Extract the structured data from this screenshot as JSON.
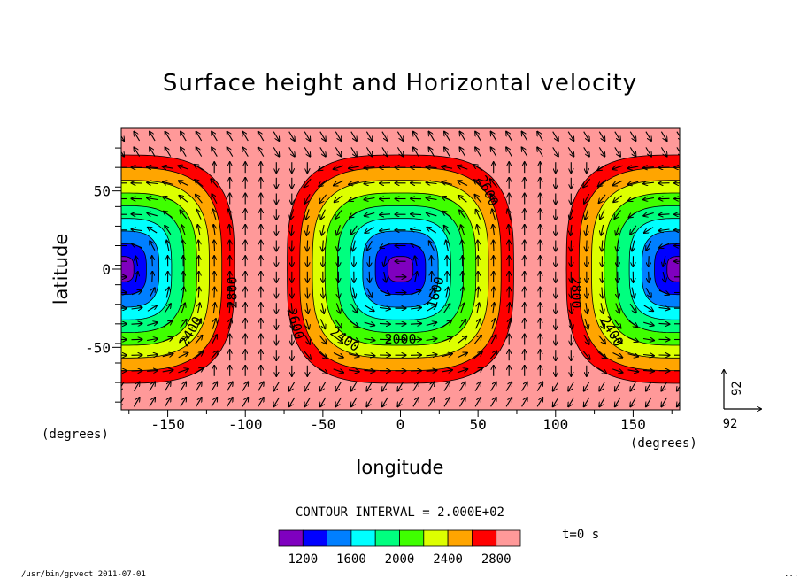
{
  "chart_data": {
    "type": "heatmap",
    "title": "Surface height and Horizontal velocity",
    "xlabel": "longitude",
    "ylabel": "latitude",
    "x_unit": "(degrees)",
    "y_unit": "(degrees)",
    "xlim": [
      -180,
      180
    ],
    "ylim": [
      -90,
      90
    ],
    "x_ticks": [
      -150,
      -100,
      -50,
      0,
      50,
      100,
      150
    ],
    "y_ticks": [
      50,
      0,
      -50
    ],
    "contour_interval_text": "CONTOUR INTERVAL = 2.000E+02",
    "time_text": "t=0 s",
    "levels": [
      1200,
      1400,
      1600,
      1800,
      2000,
      2200,
      2400,
      2600,
      2800,
      3000
    ],
    "legend_tick_labels": [
      1200,
      1600,
      2000,
      2400,
      2800
    ],
    "colors": [
      "#7f00bf",
      "#0000ff",
      "#007fff",
      "#00ffff",
      "#00ff7f",
      "#3fff00",
      "#ddff00",
      "#ffa500",
      "#ff0000",
      "#ff9999"
    ],
    "vortex_centers_lon": [
      -180,
      0,
      180
    ],
    "contour_labels": [
      {
        "text": "2400",
        "lon": -135,
        "lat": -40,
        "angle": -60
      },
      {
        "text": "2800",
        "lon": -108,
        "lat": -15,
        "angle": -90
      },
      {
        "text": "2600",
        "lon": -68,
        "lat": -35,
        "angle": 75
      },
      {
        "text": "2400",
        "lon": -36,
        "lat": -45,
        "angle": 35
      },
      {
        "text": "2000",
        "lon": 0,
        "lat": -45,
        "angle": 0
      },
      {
        "text": "1600",
        "lon": 23,
        "lat": -15,
        "angle": -75
      },
      {
        "text": "2600",
        "lon": 56,
        "lat": 50,
        "angle": 65
      },
      {
        "text": "2800",
        "lon": 113,
        "lat": -15,
        "angle": 90
      },
      {
        "text": "2400",
        "lon": 136,
        "lat": -40,
        "angle": 60
      }
    ],
    "reference_vector_label": "92"
  },
  "footer": {
    "program": "/usr/bin/gpvect  2011-07-01",
    "corner_mark": "..."
  }
}
